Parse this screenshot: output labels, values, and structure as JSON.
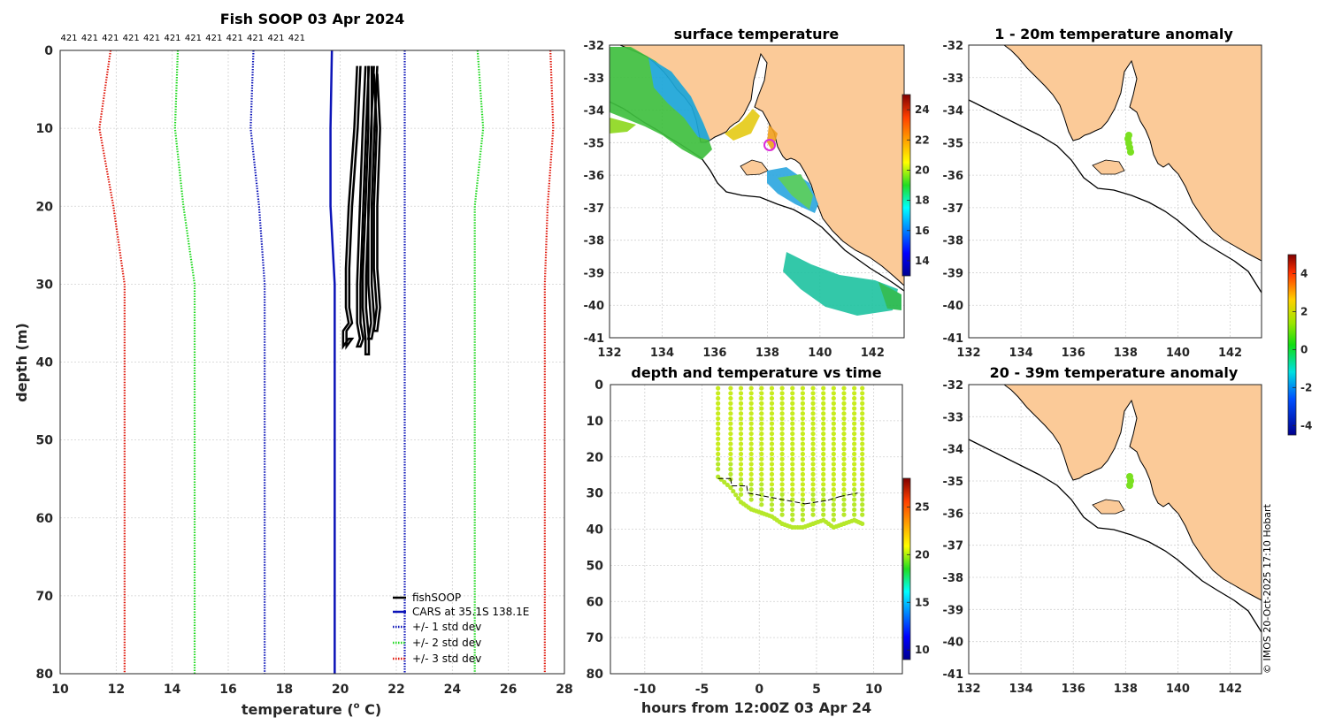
{
  "chart_data": [
    {
      "id": "profile",
      "type": "line",
      "title": "Fish SOOP 03 Apr 2024",
      "xlabel": "temperature (",
      "xlabel_sup": "o",
      "xlabel_tail": " C)",
      "ylabel": "depth (m)",
      "xlim": [
        10,
        28
      ],
      "ylim": [
        80,
        0
      ],
      "xticks": [
        "10",
        "12",
        "14",
        "16",
        "18",
        "20",
        "22",
        "24",
        "26",
        "28"
      ],
      "yticks": [
        "0",
        "10",
        "20",
        "30",
        "40",
        "50",
        "60",
        "70",
        "80"
      ],
      "profile_ids": [
        "421",
        "421",
        "421",
        "421",
        "421",
        "421",
        "421",
        "421",
        "421",
        "421",
        "421",
        "421"
      ],
      "cars": {
        "depth": [
          0,
          10,
          20,
          30,
          80
        ],
        "mean": [
          19.7,
          19.65,
          19.65,
          19.8,
          19.8
        ]
      },
      "std_bands": [
        {
          "n": 3,
          "lower": [
            11.8,
            11.4,
            11.9,
            12.3,
            12.3
          ],
          "upper": [
            27.5,
            27.6,
            27.4,
            27.3,
            27.3
          ],
          "color": "#e0180c"
        },
        {
          "n": 2,
          "lower": [
            14.2,
            14.1,
            14.4,
            14.8,
            14.8
          ],
          "upper": [
            24.9,
            25.1,
            24.8,
            24.8,
            24.8
          ],
          "color": "#1fd91f"
        },
        {
          "n": 1,
          "lower": [
            16.9,
            16.8,
            17.1,
            17.3,
            17.3
          ],
          "upper": [
            22.3,
            22.3,
            22.3,
            22.3,
            22.3
          ],
          "color": "#0c14b8"
        }
      ],
      "casts": [
        {
          "x": [
            20.6,
            20.5,
            20.3,
            20.2,
            20.2,
            20.3,
            20.1,
            20.1,
            20.3
          ],
          "y": [
            2,
            10,
            20,
            28,
            33,
            35,
            36,
            38,
            37
          ]
        },
        {
          "x": [
            20.9,
            20.8,
            20.7,
            20.6,
            20.6,
            20.7,
            20.6
          ],
          "y": [
            2,
            10,
            20,
            30,
            35,
            37,
            38
          ]
        },
        {
          "x": [
            21.0,
            21.0,
            20.9,
            20.8,
            20.8,
            20.9,
            20.9
          ],
          "y": [
            2,
            10,
            20,
            29,
            33,
            37,
            39
          ]
        },
        {
          "x": [
            21.2,
            21.1,
            21.0,
            21.0,
            21.1,
            21.0
          ],
          "y": [
            2,
            10,
            20,
            30,
            35,
            37
          ]
        },
        {
          "x": [
            21.2,
            21.3,
            21.2,
            21.2,
            21.3,
            21.2
          ],
          "y": [
            3,
            10,
            20,
            28,
            33,
            36
          ]
        }
      ],
      "legend": [
        "fishSOOP",
        "CARS at 35.1S 138.1E",
        "+/- 1 std dev",
        "+/- 2 std dev",
        "+/- 3 std dev"
      ]
    },
    {
      "id": "surface_map",
      "type": "heatmap",
      "title": "surface temperature",
      "xlim": [
        132,
        143.2
      ],
      "ylim": [
        -41,
        -32
      ],
      "xticks": [
        "132",
        "134",
        "136",
        "138",
        "140",
        "142"
      ],
      "yticks": [
        "-32",
        "-33",
        "-34",
        "-35",
        "-36",
        "-37",
        "-38",
        "-39",
        "-40",
        "-41"
      ],
      "colorbar": {
        "ticks": [
          "14",
          "16",
          "18",
          "20",
          "22",
          "24"
        ],
        "range": [
          13,
          25
        ]
      }
    },
    {
      "id": "time_series",
      "type": "scatter",
      "title": "depth and temperature vs time",
      "xlabel": "hours from 12:00Z 03 Apr 24",
      "xlim": [
        -13,
        12.5
      ],
      "ylim": [
        80,
        0
      ],
      "xticks": [
        "-10",
        "-5",
        "0",
        "5",
        "10"
      ],
      "yticks": [
        "0",
        "10",
        "20",
        "30",
        "40",
        "50",
        "60",
        "70",
        "80"
      ],
      "casts_hours": [
        -3.6,
        -2.5,
        -1.6,
        -0.7,
        0.2,
        1.1,
        2.0,
        2.9,
        3.8,
        4.7,
        5.6,
        6.5,
        7.4,
        8.3,
        9.0
      ],
      "casts_bottom": [
        24,
        27,
        31,
        33,
        34,
        35,
        37,
        38,
        38,
        37,
        36,
        38,
        37,
        36,
        37
      ],
      "colorbar": {
        "ticks": [
          "10",
          "15",
          "20",
          "25"
        ],
        "range": [
          9,
          28
        ]
      }
    },
    {
      "id": "anomaly_1_20",
      "type": "heatmap",
      "title": "1 - 20m temperature anomaly",
      "xlim": [
        132,
        143.2
      ],
      "ylim": [
        -41,
        -32
      ],
      "xticks": [
        "132",
        "134",
        "136",
        "138",
        "140",
        "142"
      ],
      "yticks": [
        "-32",
        "-33",
        "-34",
        "-35",
        "-36",
        "-37",
        "-38",
        "-39",
        "-40",
        "-41"
      ]
    },
    {
      "id": "anomaly_20_39",
      "type": "heatmap",
      "title": "20 - 39m temperature anomaly",
      "xlim": [
        132,
        143.2
      ],
      "ylim": [
        -41,
        -32
      ],
      "xticks": [
        "132",
        "134",
        "136",
        "138",
        "140",
        "142"
      ],
      "yticks": [
        "-32",
        "-33",
        "-34",
        "-35",
        "-36",
        "-37",
        "-38",
        "-39",
        "-40",
        "-41"
      ],
      "colorbar": {
        "ticks": [
          "4",
          "2",
          "0",
          "-2",
          "-4"
        ],
        "range": [
          -4.5,
          5
        ]
      }
    }
  ],
  "credit": "© IMOS 20-Oct-2025 17:10 Hobart",
  "colors": {
    "land": "#fbca98",
    "coast": "#000000",
    "ink": "#262626"
  }
}
